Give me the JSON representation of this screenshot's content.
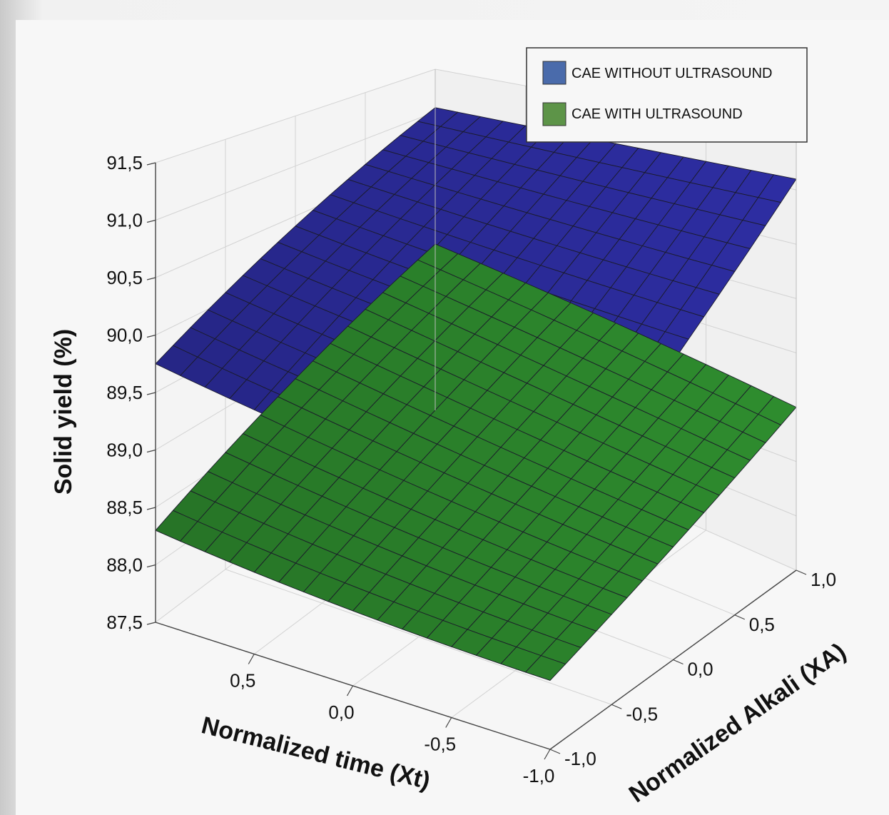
{
  "chart_data": {
    "type": "surface3d",
    "title": "",
    "zlabel": "Solid yield (%)",
    "xlabel": "Normalized time (Xt)",
    "ylabel": "Normalized Alkali (XA)",
    "zlim": [
      87.5,
      91.5
    ],
    "z_ticks": [
      "87,5",
      "88,0",
      "88,5",
      "89,0",
      "89,5",
      "90,0",
      "90,5",
      "91,0",
      "91,5"
    ],
    "x_ticks": [
      "0,5",
      "0,0",
      "-0,5",
      "-1,0"
    ],
    "y_ticks": [
      "-1,0",
      "-0,5",
      "0,0",
      "0,5",
      "1,0"
    ],
    "xlim": [
      -1.0,
      1.0
    ],
    "ylim": [
      -1.0,
      1.0
    ],
    "grid": true,
    "legend_position": "top-right",
    "series": [
      {
        "name": "CAE WITHOUT ULTRASOUND",
        "color": "#2e2ea4",
        "corners": {
          "xt_1_xa_-1": 89.75,
          "xt_1_xa_1": 91.05,
          "xt_-1_xa_-1": 89.85,
          "xt_-1_xa_1": 91.1
        },
        "minimum": 89.7
      },
      {
        "name": "CAE WITH ULTRASOUND",
        "color": "#2f8e2f",
        "corners": {
          "xt_1_xa_-1": 88.3,
          "xt_1_xa_1": 89.45,
          "xt_-1_xa_-1": 88.25,
          "xt_-1_xa_1": 89.0
        },
        "minimum": 88.2
      }
    ]
  },
  "legend": {
    "items": [
      {
        "label": "CAE WITHOUT ULTRASOUND",
        "color": "#4a6bab"
      },
      {
        "label": "CAE WITH ULTRASOUND",
        "color": "#5d9448"
      }
    ]
  }
}
